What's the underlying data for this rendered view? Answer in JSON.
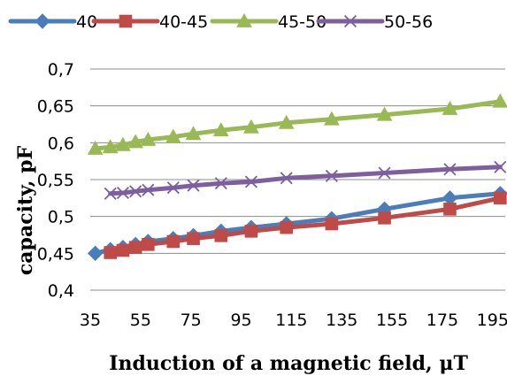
{
  "chart_data": {
    "type": "line",
    "xlabel": "Induction of a magnetic field, μT",
    "ylabel": "capacity, pF",
    "xlim": [
      35,
      200
    ],
    "ylim": [
      0.4,
      0.7
    ],
    "x_ticks": [
      "35",
      "55",
      "75",
      "95",
      "115",
      "135",
      "155",
      "175",
      "195"
    ],
    "y_ticks": [
      "0,4",
      "0,45",
      "0,5",
      "0,55",
      "0,6",
      "0,65",
      "0,7"
    ],
    "grid": "horizontal",
    "legend_position": "top",
    "series": [
      {
        "name": "40",
        "color": "#4a7ebb",
        "marker": "diamond",
        "points": [
          [
            37,
            0.45
          ],
          [
            43,
            0.455
          ],
          [
            48,
            0.458
          ],
          [
            53,
            0.462
          ],
          [
            58,
            0.466
          ],
          [
            68,
            0.47
          ],
          [
            76,
            0.474
          ],
          [
            87,
            0.48
          ],
          [
            99,
            0.485
          ],
          [
            113,
            0.49
          ],
          [
            131,
            0.497
          ],
          [
            152,
            0.51
          ],
          [
            178,
            0.525
          ],
          [
            198,
            0.531
          ]
        ]
      },
      {
        "name": "40-45",
        "color": "#be4b48",
        "marker": "square",
        "points": [
          [
            43,
            0.451
          ],
          [
            48,
            0.454
          ],
          [
            53,
            0.458
          ],
          [
            58,
            0.462
          ],
          [
            68,
            0.466
          ],
          [
            76,
            0.47
          ],
          [
            87,
            0.474
          ],
          [
            99,
            0.48
          ],
          [
            113,
            0.485
          ],
          [
            131,
            0.49
          ],
          [
            152,
            0.498
          ],
          [
            178,
            0.51
          ],
          [
            198,
            0.525
          ]
        ]
      },
      {
        "name": "45-50",
        "color": "#98b954",
        "marker": "triangle",
        "points": [
          [
            37,
            0.592
          ],
          [
            43,
            0.594
          ],
          [
            48,
            0.597
          ],
          [
            53,
            0.601
          ],
          [
            58,
            0.604
          ],
          [
            68,
            0.608
          ],
          [
            76,
            0.612
          ],
          [
            87,
            0.617
          ],
          [
            99,
            0.621
          ],
          [
            113,
            0.627
          ],
          [
            131,
            0.632
          ],
          [
            152,
            0.638
          ],
          [
            178,
            0.646
          ],
          [
            198,
            0.656
          ]
        ]
      },
      {
        "name": "50-56",
        "color": "#7d5fa0",
        "marker": "x",
        "points": [
          [
            43,
            0.531
          ],
          [
            48,
            0.532
          ],
          [
            53,
            0.534
          ],
          [
            58,
            0.536
          ],
          [
            68,
            0.539
          ],
          [
            76,
            0.542
          ],
          [
            87,
            0.545
          ],
          [
            99,
            0.547
          ],
          [
            113,
            0.552
          ],
          [
            131,
            0.555
          ],
          [
            152,
            0.559
          ],
          [
            178,
            0.564
          ],
          [
            198,
            0.567
          ]
        ]
      }
    ]
  }
}
